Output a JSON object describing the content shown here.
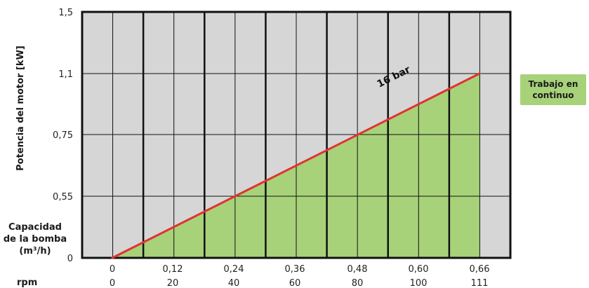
{
  "chart_data": {
    "type": "area",
    "ylabel": "Potencia del motor [kW]",
    "y_ticks": [
      "1,5",
      "1,1",
      "0,75",
      "0,55",
      "0"
    ],
    "x_caption": "Capacidad de la bomba (m³/h)",
    "x_ticks": [
      "0",
      "0,12",
      "0,24",
      "0,36",
      "0,48",
      "0,60",
      "0,66"
    ],
    "rpm_caption": "rpm",
    "rpm_ticks": [
      "0",
      "20",
      "40",
      "60",
      "80",
      "100",
      "111"
    ],
    "series": [
      {
        "name": "16 bar",
        "color": "#e03232",
        "fill": "#a8d27a",
        "x": [
          0,
          0.66
        ],
        "y": [
          0,
          1.1
        ]
      }
    ],
    "badge": "Trabajo en continuo",
    "colors": {
      "plot_bg": "#d6d6d6",
      "grid": "#111111",
      "area": "#a8d27a",
      "line": "#e03232"
    }
  }
}
